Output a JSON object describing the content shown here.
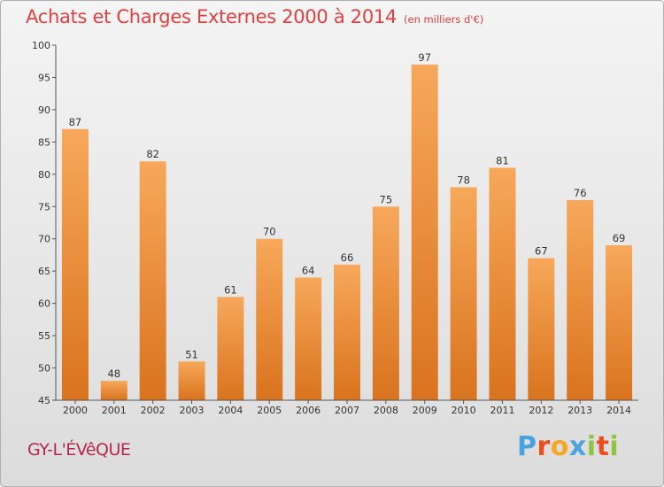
{
  "header": {
    "title": "Achats et Charges Externes 2000 à 2014",
    "subtitle": "(en milliers d'€)"
  },
  "commune": "GY-L'ÉVêQUE",
  "logo": {
    "letters": [
      "P",
      "r",
      "o",
      "x",
      "i",
      "t",
      "i"
    ],
    "colors": [
      "#4aa3df",
      "#e94e1b",
      "#f6a821",
      "#4aa3df",
      "#8dc63f",
      "#e94e1b",
      "#8dc63f"
    ]
  },
  "colors": {
    "bar_light": "#f7a85a",
    "bar_dark": "#d9731e",
    "title": "#e0403f",
    "commune": "#b5284e"
  },
  "chart_data": {
    "type": "bar",
    "title": "Achats et Charges Externes 2000 à 2014",
    "subtitle": "(en milliers d'€)",
    "xlabel": "",
    "ylabel": "",
    "categories": [
      "2000",
      "2001",
      "2002",
      "2003",
      "2004",
      "2005",
      "2006",
      "2007",
      "2008",
      "2009",
      "2010",
      "2011",
      "2012",
      "2013",
      "2014"
    ],
    "values": [
      87,
      48,
      82,
      51,
      61,
      70,
      64,
      66,
      75,
      97,
      78,
      81,
      67,
      76,
      69
    ],
    "ylim": [
      45,
      100
    ],
    "yticks": [
      45,
      50,
      55,
      60,
      65,
      70,
      75,
      80,
      85,
      90,
      95,
      100
    ],
    "grid": false,
    "legend": "none"
  }
}
